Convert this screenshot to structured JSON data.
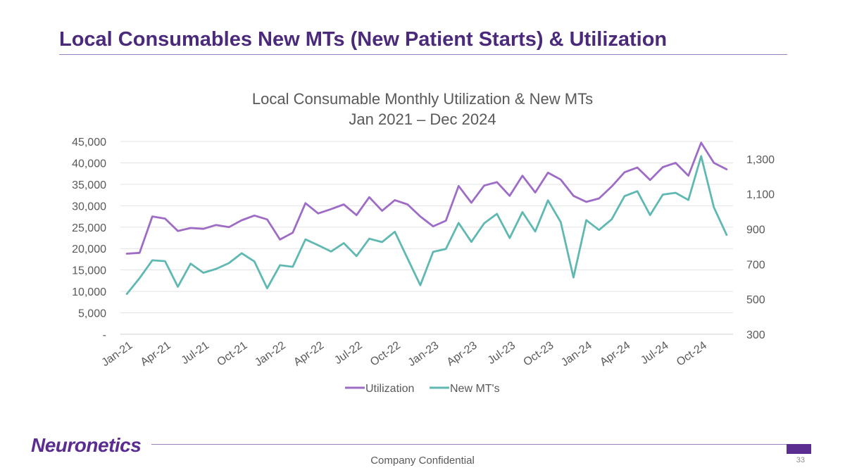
{
  "slide": {
    "title": "Local Consumables New MTs (New Patient Starts) & Utilization",
    "brand": "Neuronetics",
    "footer": "Company Confidential",
    "page_number": "33"
  },
  "colors": {
    "title": "#4b2a7b",
    "brand": "#5c2d91",
    "utilization": "#9e6cc6",
    "new_mts": "#5fb8b2",
    "grid": "#e3e3e3",
    "text": "#595959"
  },
  "chart_data": {
    "type": "line",
    "title_lines": [
      "Local Consumable Monthly Utilization & New MTs",
      "Jan 2021 – Dec 2024"
    ],
    "x_tick_labels": [
      "Jan-21",
      "Apr-21",
      "Jul-21",
      "Oct-21",
      "Jan-22",
      "Apr-22",
      "Jul-22",
      "Oct-22",
      "Jan-23",
      "Apr-23",
      "Jul-23",
      "Oct-23",
      "Jan-24",
      "Apr-24",
      "Jul-24",
      "Oct-24"
    ],
    "x_tick_every": 3,
    "primary_axis": {
      "min": 0,
      "max": 45000,
      "step": 5000,
      "labels": [
        "-",
        "5,000",
        "10,000",
        "15,000",
        "20,000",
        "25,000",
        "30,000",
        "35,000",
        "40,000",
        "45,000"
      ]
    },
    "secondary_axis": {
      "min": 300,
      "max": 1400,
      "labels": [
        {
          "value": 300,
          "label": "300"
        },
        {
          "value": 500,
          "label": "500"
        },
        {
          "value": 700,
          "label": "700"
        },
        {
          "value": 900,
          "label": "900"
        },
        {
          "value": 1100,
          "label": "1,100"
        },
        {
          "value": 1300,
          "label": "1,300"
        }
      ]
    },
    "grid": true,
    "legend_position": "bottom",
    "series": [
      {
        "name": "Utilization",
        "axis": "primary",
        "color": "#9e6cc6",
        "values": [
          18800,
          19000,
          27500,
          27000,
          24100,
          24800,
          24600,
          25500,
          25000,
          26600,
          27700,
          26800,
          22100,
          23700,
          30600,
          28200,
          29200,
          30300,
          27800,
          32000,
          28800,
          31300,
          30300,
          27500,
          25200,
          26500,
          34600,
          30700,
          34700,
          35500,
          32300,
          37000,
          33100,
          37700,
          36100,
          32300,
          30900,
          31700,
          34500,
          37800,
          38900,
          36000,
          39000,
          40000,
          37000,
          44700,
          40000,
          38500
        ]
      },
      {
        "name": "New MT's",
        "axis": "secondary",
        "color": "#5fb8b2",
        "values": [
          530,
          620,
          722,
          717,
          571,
          703,
          651,
          673,
          706,
          762,
          715,
          562,
          694,
          685,
          841,
          808,
          772,
          820,
          746,
          845,
          826,
          885,
          732,
          580,
          770,
          787,
          935,
          827,
          933,
          987,
          849,
          997,
          886,
          1064,
          940,
          624,
          951,
          895,
          956,
          1088,
          1116,
          980,
          1097,
          1107,
          1066,
          1316,
          1024,
          867
        ]
      }
    ]
  }
}
